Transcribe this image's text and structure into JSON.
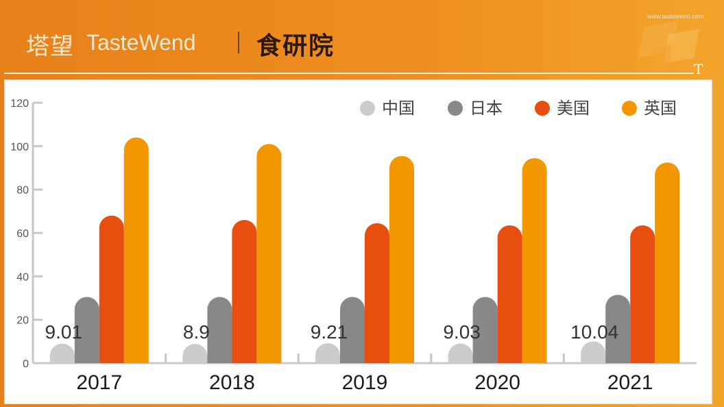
{
  "header": {
    "brand_cn": "塔望",
    "brand_en": "TasteWend",
    "brand_sub": "食研院",
    "site_url": "www.tastewend.com",
    "logo_letter": "T"
  },
  "colors": {
    "中国": "#cccccc",
    "日本": "#888888",
    "美国": "#e84e0f",
    "英国": "#f29700"
  },
  "chart_data": {
    "type": "bar",
    "categories": [
      "2017",
      "2018",
      "2019",
      "2020",
      "2021"
    ],
    "series": [
      {
        "name": "中国",
        "values": [
          9.01,
          8.9,
          9.21,
          9.03,
          10.04
        ],
        "labels": [
          "9.01",
          "8.9",
          "9.21",
          "9.03",
          "10.04"
        ]
      },
      {
        "name": "日本",
        "values": [
          30.5,
          30.5,
          30.5,
          30.5,
          31.5
        ]
      },
      {
        "name": "美国",
        "values": [
          68,
          66,
          64.5,
          63.5,
          63.5
        ]
      },
      {
        "name": "英国",
        "values": [
          104,
          101,
          95.5,
          94.5,
          92.5
        ]
      }
    ],
    "yticks": [
      "0",
      "20",
      "40",
      "60",
      "80",
      "100",
      "120"
    ],
    "ylim": [
      0,
      120
    ],
    "legend_position": "top-right",
    "grid": false
  }
}
